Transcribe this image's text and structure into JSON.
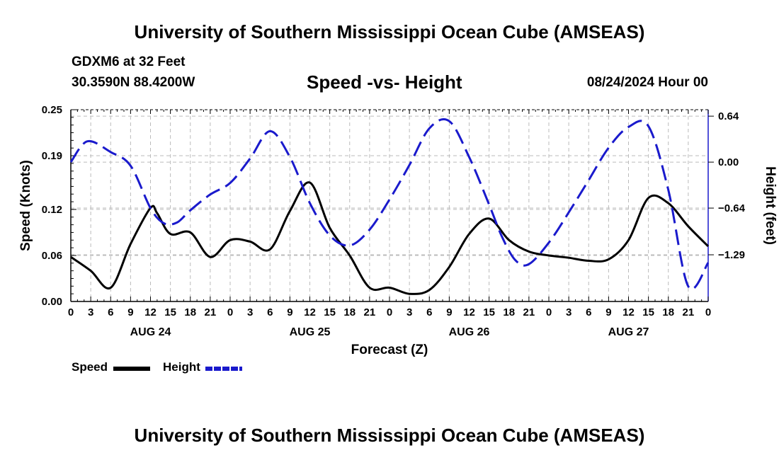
{
  "header": {
    "top_title": "University of Southern Mississippi Ocean Cube (AMSEAS)",
    "station": "GDXM6 at 32 Feet",
    "coords": "30.3590N  88.4200W",
    "chart_title": "Speed -vs- Height",
    "datetime": "08/24/2024 Hour 00"
  },
  "footer": {
    "bottom_title": "University of Southern Mississippi Ocean Cube (AMSEAS)"
  },
  "legend": {
    "speed_label": "Speed",
    "height_label": "Height"
  },
  "colors": {
    "speed": "#000000",
    "height": "#1a1acc",
    "grid": "#bbbbbb"
  },
  "chart_data": {
    "type": "line",
    "title": "Speed -vs- Height",
    "xlabel": "Forecast (Z)",
    "ylabel": "Speed (Knots)",
    "ylabel_right": "Height (feet)",
    "x_range_hours": [
      0,
      96
    ],
    "xtick_hours": [
      0,
      3,
      6,
      9,
      12,
      15,
      18,
      21,
      24,
      27,
      30,
      33,
      36,
      39,
      42,
      45,
      48,
      51,
      54,
      57,
      60,
      63,
      66,
      69,
      72,
      75,
      78,
      81,
      84,
      87,
      90,
      93,
      96
    ],
    "xtick_labels": [
      "0",
      "3",
      "6",
      "9",
      "12",
      "15",
      "18",
      "21",
      "0",
      "3",
      "6",
      "9",
      "12",
      "15",
      "18",
      "21",
      "0",
      "3",
      "6",
      "9",
      "12",
      "15",
      "18",
      "21",
      "0",
      "3",
      "6",
      "9",
      "12",
      "15",
      "18",
      "21",
      "0"
    ],
    "date_labels": [
      {
        "hour": 12,
        "label": "AUG 24"
      },
      {
        "hour": 36,
        "label": "AUG 25"
      },
      {
        "hour": 60,
        "label": "AUG 26"
      },
      {
        "hour": 84,
        "label": "AUG 27"
      }
    ],
    "ylim_left": [
      0,
      0.25
    ],
    "yticks_left": [
      0,
      0.06,
      0.12,
      0.19,
      0.25
    ],
    "ytick_labels_left": [
      "0.00",
      "0.06",
      "0.12",
      "0.19",
      "0.25"
    ],
    "ylim_right": [
      -1.94,
      0.73
    ],
    "yticks_right": [
      0.64,
      0,
      -0.64,
      -1.29
    ],
    "ytick_labels_right": [
      "0.64",
      "0.00",
      "−0.64",
      "−1.29"
    ],
    "series": [
      {
        "name": "Speed",
        "axis": "left",
        "style": "solid",
        "x": [
          0,
          3,
          6,
          9,
          12,
          13,
          15,
          18,
          21,
          24,
          27,
          30,
          33,
          36,
          39,
          42,
          45,
          48,
          51,
          54,
          57,
          60,
          63,
          66,
          69,
          72,
          75,
          78,
          81,
          84,
          87,
          90,
          93,
          96
        ],
        "values": [
          0.058,
          0.04,
          0.018,
          0.075,
          0.122,
          0.115,
          0.088,
          0.09,
          0.058,
          0.08,
          0.078,
          0.068,
          0.118,
          0.155,
          0.096,
          0.06,
          0.018,
          0.018,
          0.01,
          0.015,
          0.045,
          0.088,
          0.108,
          0.08,
          0.065,
          0.06,
          0.057,
          0.053,
          0.055,
          0.08,
          0.135,
          0.128,
          0.098,
          0.072
        ]
      },
      {
        "name": "Height",
        "axis": "right",
        "style": "dashed",
        "x": [
          0,
          2.5,
          6,
          9,
          12,
          14,
          16,
          18,
          21,
          24,
          27,
          30,
          33,
          36,
          39,
          42,
          45,
          48,
          51,
          54,
          57,
          60,
          63,
          65,
          67,
          69,
          72,
          75,
          78,
          81,
          84,
          87,
          90,
          93,
          96
        ],
        "values": [
          0.0,
          0.29,
          0.14,
          -0.05,
          -0.64,
          -0.85,
          -0.84,
          -0.67,
          -0.45,
          -0.29,
          0.05,
          0.43,
          0.07,
          -0.57,
          -1.02,
          -1.16,
          -0.94,
          -0.52,
          -0.04,
          0.47,
          0.57,
          0.07,
          -0.59,
          -1.05,
          -1.37,
          -1.42,
          -1.12,
          -0.7,
          -0.25,
          0.2,
          0.49,
          0.5,
          -0.39,
          -1.73,
          -1.4
        ]
      }
    ]
  }
}
